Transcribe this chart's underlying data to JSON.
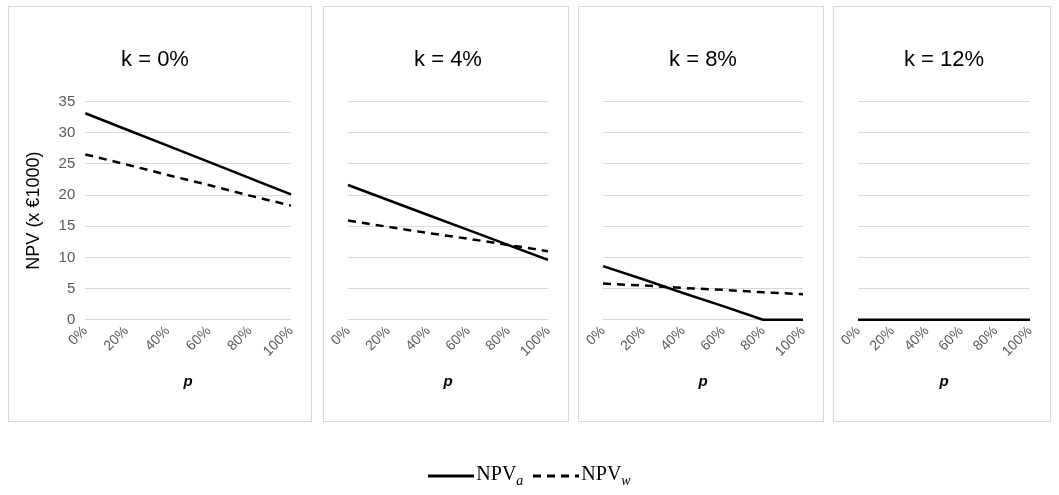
{
  "chart_data": [
    {
      "type": "line",
      "title": "k = 0%",
      "xlabel": "p",
      "ylabel": "NPV (x €1000)",
      "categories": [
        "0%",
        "20%",
        "40%",
        "60%",
        "80%",
        "100%"
      ],
      "ylim": [
        0,
        35
      ],
      "yticks": [
        0,
        5,
        10,
        15,
        20,
        25,
        30,
        35
      ],
      "grid": "y",
      "marker": "none",
      "legend": "bottom",
      "series": [
        {
          "name": "NPV$_{a}$",
          "color": "#000000",
          "line_style": "solid",
          "values": [
            33.1,
            30.5,
            27.9,
            25.3,
            22.7,
            20.1
          ]
        },
        {
          "name": "NPV$_{w}$",
          "color": "#000000",
          "line_style": "dashed",
          "values": [
            26.5,
            24.9,
            23.2,
            21.6,
            19.9,
            18.3
          ]
        }
      ]
    },
    {
      "type": "line",
      "title": "k = 4%",
      "xlabel": "p",
      "categories": [
        "0%",
        "20%",
        "40%",
        "60%",
        "80%",
        "100%"
      ],
      "ylim": [
        0,
        35
      ],
      "yticks": [
        0,
        5,
        10,
        15,
        20,
        25,
        30,
        35
      ],
      "tick_labels": "x",
      "grid": "y",
      "marker": "none",
      "series": [
        {
          "color": "#000000",
          "line_style": "solid",
          "values": [
            21.6,
            19.2,
            16.8,
            14.4,
            12.0,
            9.6
          ]
        },
        {
          "color": "#000000",
          "line_style": "dashed",
          "values": [
            15.9,
            14.9,
            13.9,
            13.0,
            12.0,
            11.0
          ]
        }
      ]
    },
    {
      "type": "line",
      "title": "k = 8%",
      "xlabel": "p",
      "categories": [
        "0%",
        "20%",
        "40%",
        "60%",
        "80%",
        "100%"
      ],
      "ylim": [
        0,
        35
      ],
      "yticks": [
        0,
        5,
        10,
        15,
        20,
        25,
        30,
        35
      ],
      "tick_labels": "x",
      "grid": "y",
      "marker": "none",
      "series": [
        {
          "color": "#000000",
          "line_style": "solid",
          "values": [
            8.6,
            6.5,
            4.3,
            2.2,
            0,
            0
          ]
        },
        {
          "color": "#000000",
          "line_style": "dashed",
          "values": [
            5.8,
            5.5,
            5.1,
            4.8,
            4.4,
            4.1
          ]
        }
      ]
    },
    {
      "type": "line",
      "title": "k = 12%",
      "xlabel": "p",
      "categories": [
        "0%",
        "20%",
        "40%",
        "60%",
        "80%",
        "100%"
      ],
      "ylim": [
        0,
        35
      ],
      "yticks": [
        0,
        5,
        10,
        15,
        20,
        25,
        30,
        35
      ],
      "tick_labels": "x",
      "grid": "y",
      "marker": "none",
      "series": [
        {
          "color": "#000000",
          "line_style": "solid",
          "values": [
            0,
            0,
            0,
            0,
            0,
            0
          ]
        }
      ]
    }
  ]
}
